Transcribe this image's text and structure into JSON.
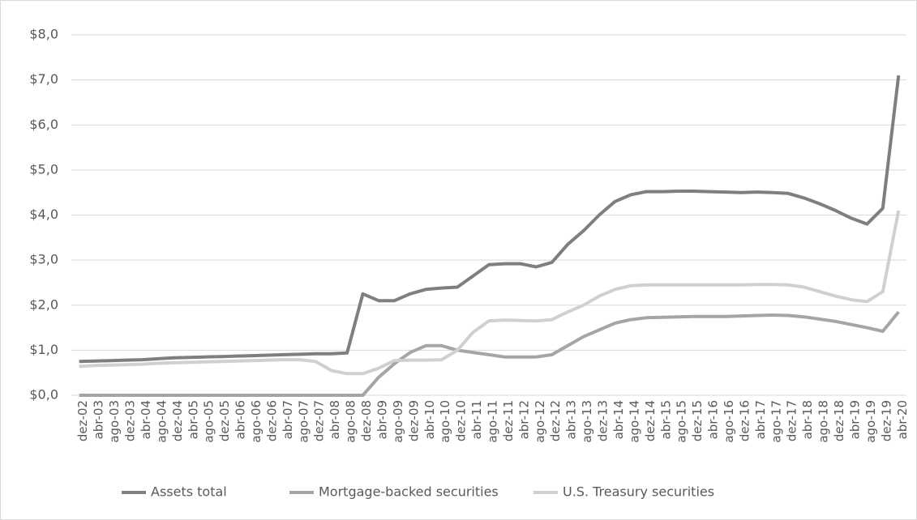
{
  "chart_data": {
    "type": "line",
    "categories": [
      "dez-02",
      "abr-03",
      "ago-03",
      "dez-03",
      "abr-04",
      "ago-04",
      "dez-04",
      "abr-05",
      "ago-05",
      "dez-05",
      "abr-06",
      "ago-06",
      "dez-06",
      "abr-07",
      "ago-07",
      "dez-07",
      "abr-08",
      "ago-08",
      "dez-08",
      "abr-09",
      "ago-09",
      "dez-09",
      "abr-10",
      "ago-10",
      "dez-10",
      "abr-11",
      "ago-11",
      "dez-11",
      "abr-12",
      "ago-12",
      "dez-12",
      "abr-13",
      "ago-13",
      "dez-13",
      "abr-14",
      "ago-14",
      "dez-14",
      "abr-15",
      "ago-15",
      "dez-15",
      "abr-16",
      "ago-16",
      "dez-16",
      "abr-17",
      "ago-17",
      "dez-17",
      "abr-18",
      "ago-18",
      "dez-18",
      "abr-19",
      "ago-19",
      "dez-19",
      "abr-20"
    ],
    "series": [
      {
        "name": "Assets total",
        "color": "#7f7f7f",
        "values": [
          0.75,
          0.76,
          0.77,
          0.78,
          0.79,
          0.81,
          0.83,
          0.84,
          0.85,
          0.86,
          0.87,
          0.88,
          0.89,
          0.9,
          0.91,
          0.92,
          0.92,
          0.94,
          2.25,
          2.1,
          2.1,
          2.25,
          2.35,
          2.38,
          2.4,
          2.65,
          2.9,
          2.92,
          2.92,
          2.85,
          2.95,
          3.35,
          3.65,
          4.0,
          4.3,
          4.45,
          4.52,
          4.52,
          4.53,
          4.53,
          4.52,
          4.51,
          4.5,
          4.51,
          4.5,
          4.48,
          4.38,
          4.25,
          4.1,
          3.93,
          3.8,
          4.15,
          7.1
        ]
      },
      {
        "name": "Mortgage-backed securities",
        "color": "#a5a5a5",
        "values": [
          0,
          0,
          0,
          0,
          0,
          0,
          0,
          0,
          0,
          0,
          0,
          0,
          0,
          0,
          0,
          0,
          0,
          0,
          0,
          0.4,
          0.7,
          0.95,
          1.1,
          1.1,
          1.0,
          0.95,
          0.9,
          0.85,
          0.85,
          0.85,
          0.9,
          1.1,
          1.3,
          1.45,
          1.6,
          1.68,
          1.72,
          1.73,
          1.74,
          1.75,
          1.75,
          1.75,
          1.76,
          1.77,
          1.78,
          1.77,
          1.74,
          1.69,
          1.64,
          1.57,
          1.5,
          1.42,
          1.85
        ]
      },
      {
        "name": "U.S. Treasury securities",
        "color": "#d0d0d0",
        "values": [
          0.64,
          0.66,
          0.67,
          0.68,
          0.69,
          0.71,
          0.72,
          0.73,
          0.74,
          0.75,
          0.76,
          0.77,
          0.78,
          0.79,
          0.79,
          0.75,
          0.55,
          0.48,
          0.48,
          0.6,
          0.77,
          0.78,
          0.78,
          0.79,
          1.0,
          1.4,
          1.65,
          1.67,
          1.66,
          1.65,
          1.68,
          1.85,
          2.0,
          2.2,
          2.35,
          2.43,
          2.45,
          2.45,
          2.45,
          2.45,
          2.45,
          2.45,
          2.45,
          2.46,
          2.46,
          2.45,
          2.4,
          2.3,
          2.2,
          2.12,
          2.08,
          2.3,
          4.1
        ]
      }
    ],
    "ylim": [
      0,
      8
    ],
    "yticks": [
      {
        "value": 0,
        "label": "$0,0"
      },
      {
        "value": 1,
        "label": "$1,0"
      },
      {
        "value": 2,
        "label": "$2,0"
      },
      {
        "value": 3,
        "label": "$3,0"
      },
      {
        "value": 4,
        "label": "$4,0"
      },
      {
        "value": 5,
        "label": "$5,0"
      },
      {
        "value": 6,
        "label": "$6,0"
      },
      {
        "value": 7,
        "label": "$7,0"
      },
      {
        "value": 8,
        "label": "$8,0"
      }
    ],
    "grid": true,
    "legend": "bottom"
  }
}
